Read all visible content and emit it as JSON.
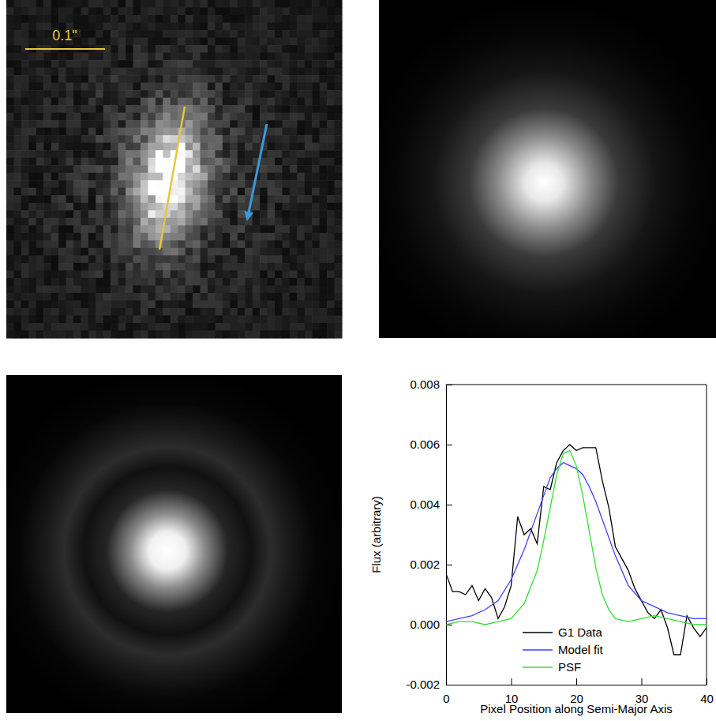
{
  "chart_data": {
    "type": "line",
    "x_label": "Pixel Position along Semi-Major Axis",
    "y_label": "Flux (arbitrary)",
    "xlim": [
      0,
      40
    ],
    "xticks": [
      0,
      10,
      20,
      30,
      40
    ],
    "ylim": [
      -0.002,
      0.008
    ],
    "yticks": [
      -0.002,
      {
        "value": 0,
        "label": "0.000"
      },
      0.002,
      0.004,
      0.006,
      0.008
    ],
    "grid": false,
    "legend": "lower center",
    "series": [
      {
        "name": "G1 Data",
        "color": "#000000",
        "x": [
          0,
          1,
          2,
          3,
          4,
          5,
          6,
          7,
          8,
          9,
          10,
          11,
          12,
          13,
          14,
          15,
          16,
          17,
          18,
          19,
          20,
          21,
          22,
          23,
          24,
          25,
          26,
          27,
          28,
          29,
          30,
          31,
          32,
          33,
          34,
          35,
          36,
          37,
          38,
          39,
          40
        ],
        "values": [
          0.0017,
          0.0011,
          0.0011,
          0.001,
          0.0013,
          0.0008,
          0.0012,
          0.0009,
          0.0002,
          0.0006,
          0.0013,
          0.0036,
          0.003,
          0.0032,
          0.0027,
          0.0046,
          0.0045,
          0.0054,
          0.0058,
          0.006,
          0.0058,
          0.0059,
          0.0059,
          0.0059,
          0.0048,
          0.0039,
          0.0026,
          0.0022,
          0.0018,
          0.0012,
          0.0008,
          0.0004,
          0.0002,
          0.0005,
          -0.0001,
          -0.001,
          -0.001,
          0.0003,
          -0.0001,
          -0.0004,
          -0.0001
        ]
      },
      {
        "name": "Model fit",
        "color": "#4040ff",
        "x": [
          0,
          2,
          4,
          6,
          8,
          10,
          12,
          14,
          15,
          16,
          17,
          18,
          19,
          20,
          21,
          22,
          23,
          24,
          26,
          28,
          30,
          32,
          34,
          36,
          38,
          40
        ],
        "values": [
          0.0001,
          0.0002,
          0.0003,
          0.0005,
          0.0008,
          0.0015,
          0.0025,
          0.0037,
          0.0043,
          0.0049,
          0.0052,
          0.0054,
          0.0053,
          0.0052,
          0.005,
          0.0046,
          0.0041,
          0.0035,
          0.0023,
          0.0013,
          0.0008,
          0.0006,
          0.0004,
          0.0003,
          0.0002,
          0.0002
        ]
      },
      {
        "name": "PSF",
        "color": "#33dd33",
        "x": [
          0,
          2,
          4,
          6,
          8,
          10,
          12,
          14,
          15,
          16,
          17,
          18,
          19,
          20,
          21,
          22,
          23,
          24,
          25,
          26,
          28,
          30,
          32,
          34,
          36,
          38,
          40
        ],
        "values": [
          0.0,
          0.0001,
          0.0001,
          0.0,
          0.0001,
          0.0002,
          0.0007,
          0.0018,
          0.0028,
          0.0039,
          0.005,
          0.0057,
          0.0058,
          0.0053,
          0.0043,
          0.0031,
          0.0019,
          0.001,
          0.0005,
          0.0002,
          0.0001,
          0.0002,
          0.0003,
          0.0002,
          0.0001,
          0.0,
          0.0
        ]
      }
    ]
  },
  "images": {
    "scale_bar_label": "0.1\""
  }
}
